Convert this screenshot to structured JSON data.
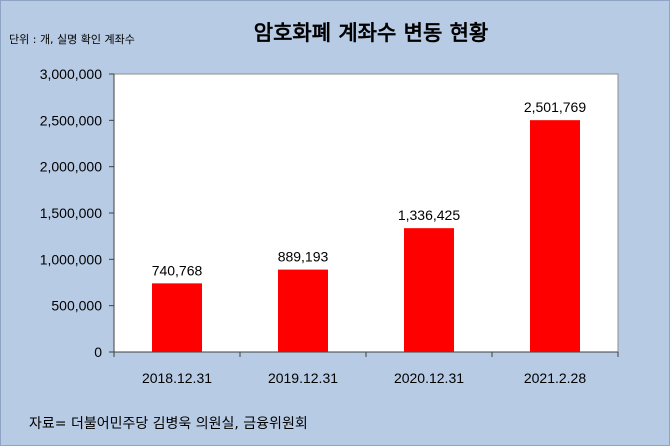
{
  "chart_data": {
    "type": "bar",
    "title": "암호화폐 계좌수 변동 현황",
    "unit_note": "단위 : 개, 실명 확인 계좌수",
    "source_note": "자료= 더불어민주당 김병욱 의원실, 금융위원회",
    "categories": [
      "2018.12.31",
      "2019.12.31",
      "2020.12.31",
      "2021.2.28"
    ],
    "values": [
      740768,
      889193,
      1336425,
      2501769
    ],
    "value_labels": [
      "740,768",
      "889,193",
      "1,336,425",
      "2,501,769"
    ],
    "ylim": [
      0,
      3000000
    ],
    "yticks": [
      0,
      500000,
      1000000,
      1500000,
      2000000,
      2500000,
      3000000
    ],
    "ytick_labels": [
      "0",
      "500,000",
      "1,000,000",
      "1,500,000",
      "2,000,000",
      "2,500,000",
      "3,000,000"
    ],
    "grid": false,
    "bar_color": "#ff0000",
    "plot_background": "#ffffff",
    "chart_background": "#b8cbe4"
  }
}
